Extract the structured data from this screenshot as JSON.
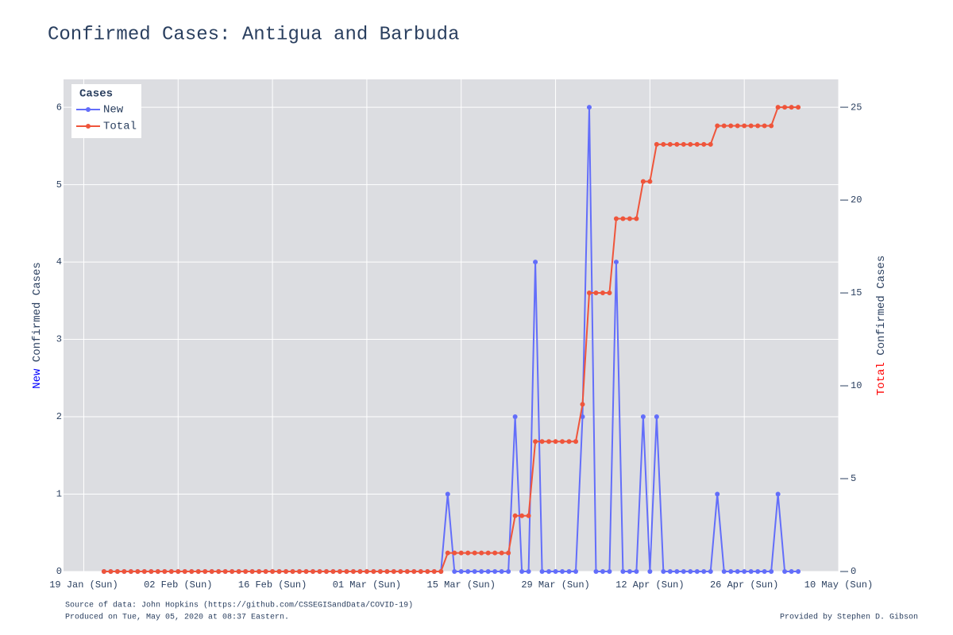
{
  "chart_data": {
    "type": "line",
    "title": "Confirmed Cases: Antigua and Barbuda",
    "y_title": [
      "New",
      "Confirmed Cases"
    ],
    "y2_title": [
      "Total",
      "Confirmed Cases"
    ],
    "legend_title": "Cases",
    "legend": "top-left",
    "grid": true,
    "source": "Source of data: John Hopkins (https://github.com/CSSEGISandData/COVID-19)",
    "produced": "Produced on Tue, May 05, 2020 at 08:37 Eastern.",
    "credit": "Provided by Stephen D. Gibson",
    "x": [
      "22 Jan",
      "23 Jan",
      "24 Jan",
      "25 Jan",
      "26 Jan",
      "27 Jan",
      "28 Jan",
      "29 Jan",
      "30 Jan",
      "31 Jan",
      "01 Feb",
      "02 Feb",
      "03 Feb",
      "04 Feb",
      "05 Feb",
      "06 Feb",
      "07 Feb",
      "08 Feb",
      "09 Feb",
      "10 Feb",
      "11 Feb",
      "12 Feb",
      "13 Feb",
      "14 Feb",
      "15 Feb",
      "16 Feb",
      "17 Feb",
      "18 Feb",
      "19 Feb",
      "20 Feb",
      "21 Feb",
      "22 Feb",
      "23 Feb",
      "24 Feb",
      "25 Feb",
      "26 Feb",
      "27 Feb",
      "28 Feb",
      "29 Feb",
      "01 Mar",
      "02 Mar",
      "03 Mar",
      "04 Mar",
      "05 Mar",
      "06 Mar",
      "07 Mar",
      "08 Mar",
      "09 Mar",
      "10 Mar",
      "11 Mar",
      "12 Mar",
      "13 Mar",
      "14 Mar",
      "15 Mar",
      "16 Mar",
      "17 Mar",
      "18 Mar",
      "19 Mar",
      "20 Mar",
      "21 Mar",
      "22 Mar",
      "23 Mar",
      "24 Mar",
      "25 Mar",
      "26 Mar",
      "27 Mar",
      "28 Mar",
      "29 Mar",
      "30 Mar",
      "31 Mar",
      "01 Apr",
      "02 Apr",
      "03 Apr",
      "04 Apr",
      "05 Apr",
      "06 Apr",
      "07 Apr",
      "08 Apr",
      "09 Apr",
      "10 Apr",
      "11 Apr",
      "12 Apr",
      "13 Apr",
      "14 Apr",
      "15 Apr",
      "16 Apr",
      "17 Apr",
      "18 Apr",
      "19 Apr",
      "20 Apr",
      "21 Apr",
      "22 Apr",
      "23 Apr",
      "24 Apr",
      "25 Apr",
      "26 Apr",
      "27 Apr",
      "28 Apr",
      "29 Apr",
      "30 Apr",
      "01 May",
      "02 May",
      "03 May",
      "04 May"
    ],
    "series": [
      {
        "name": "New",
        "color": "#636efa",
        "values": [
          0,
          0,
          0,
          0,
          0,
          0,
          0,
          0,
          0,
          0,
          0,
          0,
          0,
          0,
          0,
          0,
          0,
          0,
          0,
          0,
          0,
          0,
          0,
          0,
          0,
          0,
          0,
          0,
          0,
          0,
          0,
          0,
          0,
          0,
          0,
          0,
          0,
          0,
          0,
          0,
          0,
          0,
          0,
          0,
          0,
          0,
          0,
          0,
          0,
          0,
          0,
          1,
          0,
          0,
          0,
          0,
          0,
          0,
          0,
          0,
          0,
          2,
          0,
          0,
          4,
          0,
          0,
          0,
          0,
          0,
          0,
          2,
          6,
          0,
          0,
          0,
          4,
          0,
          0,
          0,
          2,
          0,
          2,
          0,
          0,
          0,
          0,
          0,
          0,
          0,
          0,
          1,
          0,
          0,
          0,
          0,
          0,
          0,
          0,
          0,
          1,
          0,
          0,
          0
        ]
      },
      {
        "name": "Total",
        "color": "#ef553b",
        "axis": "y2",
        "values": [
          0,
          0,
          0,
          0,
          0,
          0,
          0,
          0,
          0,
          0,
          0,
          0,
          0,
          0,
          0,
          0,
          0,
          0,
          0,
          0,
          0,
          0,
          0,
          0,
          0,
          0,
          0,
          0,
          0,
          0,
          0,
          0,
          0,
          0,
          0,
          0,
          0,
          0,
          0,
          0,
          0,
          0,
          0,
          0,
          0,
          0,
          0,
          0,
          0,
          0,
          0,
          1,
          1,
          1,
          1,
          1,
          1,
          1,
          1,
          1,
          1,
          3,
          3,
          3,
          7,
          7,
          7,
          7,
          7,
          7,
          7,
          9,
          15,
          15,
          15,
          15,
          19,
          19,
          19,
          19,
          21,
          21,
          23,
          23,
          23,
          23,
          23,
          23,
          23,
          23,
          23,
          24,
          24,
          24,
          24,
          24,
          24,
          24,
          24,
          24,
          25,
          25,
          25,
          25
        ]
      }
    ],
    "xlim": [
      "16 Jan",
      "10 May"
    ],
    "xticks": [
      {
        "value": "19 Jan",
        "label": "19 Jan (Sun)"
      },
      {
        "value": "02 Feb",
        "label": "02 Feb (Sun)"
      },
      {
        "value": "16 Feb",
        "label": "16 Feb (Sun)"
      },
      {
        "value": "01 Mar",
        "label": "01 Mar (Sun)"
      },
      {
        "value": "15 Mar",
        "label": "15 Mar (Sun)"
      },
      {
        "value": "29 Mar",
        "label": "29 Mar (Sun)"
      },
      {
        "value": "12 Apr",
        "label": "12 Apr (Sun)"
      },
      {
        "value": "26 Apr",
        "label": "26 Apr (Sun)"
      },
      {
        "value": "10 May",
        "label": "10 May (Sun)"
      }
    ],
    "ylim": [
      0,
      6.36
    ],
    "yticks": [
      0,
      1,
      2,
      3,
      4,
      5,
      6
    ],
    "y2lim": [
      0,
      26.5
    ],
    "y2ticks": [
      0,
      5,
      10,
      15,
      20,
      25
    ]
  }
}
